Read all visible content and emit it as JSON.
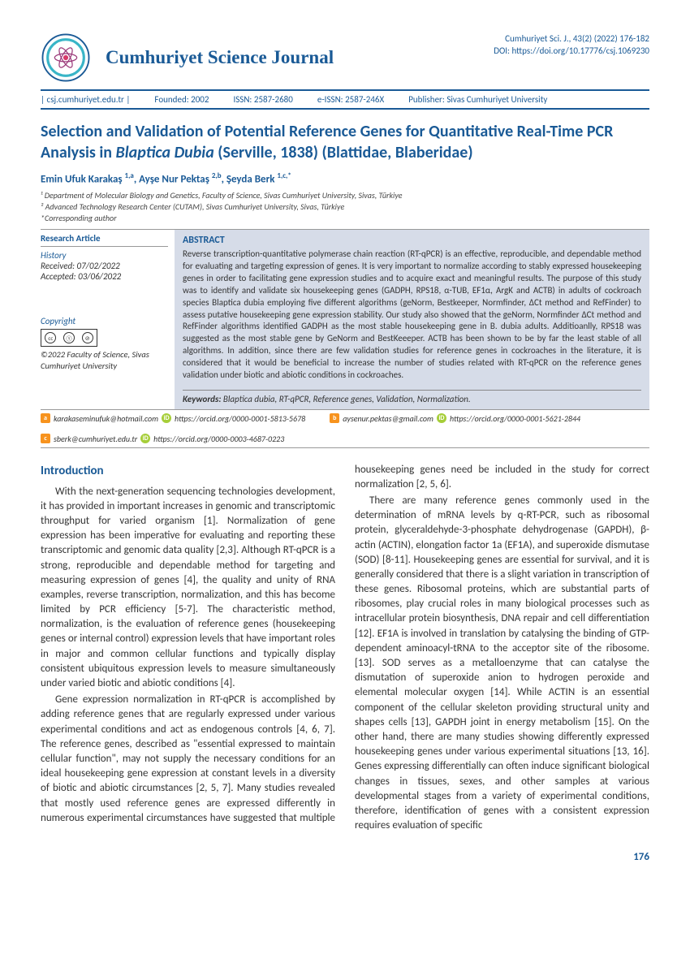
{
  "header": {
    "journal_name": "Cumhuriyet Science Journal",
    "citation": "Cumhuriyet Sci. J., 43(2) (2022) 176-182",
    "doi": "DOI: https://doi.org/10.17776/csj.1069230",
    "website": "| csj.cumhuriyet.edu.tr |",
    "founded": "Founded: 2002",
    "issn": "ISSN: 2587-2680",
    "eissn": "e-ISSN: 2587-246X",
    "publisher": "Publisher: Sivas Cumhuriyet University"
  },
  "title_pre": "Selection and Validation of Potential Reference Genes for Quantitative Real-Time PCR Analysis in ",
  "title_ital": "Blaptica Dubia",
  "title_post": " (Serville, 1838) (Blattidae, Blaberidae)",
  "authors_html": "Emin Ufuk Karakaş <sup>1,a</sup>, Ayşe Nur Pektaş <sup>2,b</sup>, Şeyda Berk <sup>1,c,*</sup>",
  "affiliations": {
    "a1": "¹ Department of Molecular Biology and Genetics, Faculty of Science, Sivas Cumhuriyet University,  Sivas, Türkiye",
    "a2": "² Advanced Technology Research Center (CUTAM), Sivas Cumhuriyet University, Sivas, Türkiye",
    "corr": "*Corresponding author"
  },
  "meta": {
    "research_article": "Research Article",
    "history_label": "History",
    "received": "Received:  07/02/2022",
    "accepted": "Accepted: 03/06/2022",
    "copyright_label": "Copyright",
    "copyright_text": "©2022 Faculty of Science, Sivas Cumhuriyet University"
  },
  "abstract": {
    "heading": "ABSTRACT",
    "text": "Reverse transcription-quantitative polymerase chain reaction (RT-qPCR) is an effective, reproducible, and dependable method for evaluating and targeting expression of genes. It is very important to normalize according to stably expressed housekeeping genes in order to facilitating gene expression studies and to acquire exact and meaningful results. The purpose of this study was to identify and validate six housekeeping genes (GADPH, RPS18, α-TUB, EF1α, ArgK and ACTB) in adults of cockroach species Blaptica dubia employing five different algorithms (geNorm, Bestkeeper, Normfinder, ΔCt method and RefFinder) to assess putative housekeeping gene expression stability. Our study also showed that the geNorm, Normfinder ΔCt method and RefFinder algorithms identified GADPH as the most stable housekeeping gene in B. dubia adults. Additioanlly, RPS18 was suggested as the most stable gene by GeNorm and BestKeeeper. ACTB has been shown to be by far the least stable of all algorithms. In addition, since there are few validation studies for reference genes in cockroaches in the literature, it is considered that it would be beneficial to increase the number of studies related with RT-qPCR on the reference genes validation under biotic and abiotic conditions in cockroaches.",
    "keywords_label": "Keywords:",
    "keywords_text": " Blaptica dubia, RT-qPCR, Reference genes, Validation, Normalization."
  },
  "contacts": {
    "c1_email": "karakaseminufuk@hotmail.com",
    "c1_orcid": "https://orcid.org/0000-0001-5813-5678",
    "c2_email": "aysenur.pektas@gmail.com",
    "c2_orcid": "https://orcid.org/0000-0001-5621-2844",
    "c3_email": "sberk@cumhuriyet.edu.tr",
    "c3_orcid": "https://orcid.org/0000-0003-4687-0223"
  },
  "body": {
    "intro_heading": "Introduction",
    "p1": "With the next-generation sequencing technologies development, it has provided in important increases in genomic and transcriptomic throughput for varied organism [1]. Normalization of gene expression has been imperative for evaluating and reporting these transcriptomic and genomic data quality [2,3]. Although RT-qPCR is a strong, reproducible and dependable method for targeting and measuring expression of genes [4], the quality and unity of RNA examples, reverse transcription, normalization, and this has become limited by PCR efficiency [5-7]. The characteristic method, normalization, is the evaluation of reference genes (housekeeping genes or internal control) expression levels that have important roles in major and common cellular functions and typically display consistent ubiquitous expression levels to measure simultaneously under varied biotic and abiotic conditions [4].",
    "p2": "Gene expression normalization in RT-qPCR is accomplished by adding reference genes that are regularly expressed under various experimental conditions and act as endogenous controls [4, 6, 7]. The reference genes, described as \"essential expressed to maintain cellular function\", may not supply the necessary conditions for an ideal housekeeping gene expression at constant levels in a diversity of biotic and abiotic circumstances [2, 5, 7]. Many studies revealed that mostly used reference genes are expressed differently in numerous experimental circumstances have suggested that multiple housekeeping genes need be included in the study for correct normalization [2, 5, 6].",
    "p3": "There are many reference genes commonly used in the determination of mRNA levels by q-RT-PCR, such as ribosomal protein, glyceraldehyde-3-phosphate dehydrogenase (GAPDH), β-actin (ACTIN), elongation factor 1a (EF1A), and superoxide dismutase (SOD) [8-11]. Housekeeping genes are essential for survival, and it is generally considered that there is a slight variation in transcription of these genes. Ribosomal proteins, which are substantial parts of ribosomes, play crucial roles in many biological processes such as intracellular protein biosynthesis, DNA repair and cell differentiation [12]. EF1A is involved in translation by catalysing the binding of GTP-dependent aminoacyl-tRNA to the acceptor site of the ribosome. [13]. SOD serves as a metalloenzyme that can catalyse the dismutation of superoxide anion to hydrogen peroxide and elemental molecular oxygen [14]. While ACTIN is an essential component of the cellular skeleton providing structural unity and shapes cells [13], GAPDH joint in energy metabolism [15]. On the other hand, there are many studies showing differently expressed housekeeping genes under various experimental situations [13, 16]. Genes expressing differentially can often induce significant biological changes in tissues, sexes, and other samples at various developmental stages from a variety of experimental conditions, therefore, identification of genes with a consistent expression requires evaluation of specific"
  },
  "page_number": "176",
  "colors": {
    "primary": "#1a5a96",
    "abstract_bg": "#d6dce8",
    "orcid": "#a6ce39",
    "mail_badge": "#f7931e"
  }
}
